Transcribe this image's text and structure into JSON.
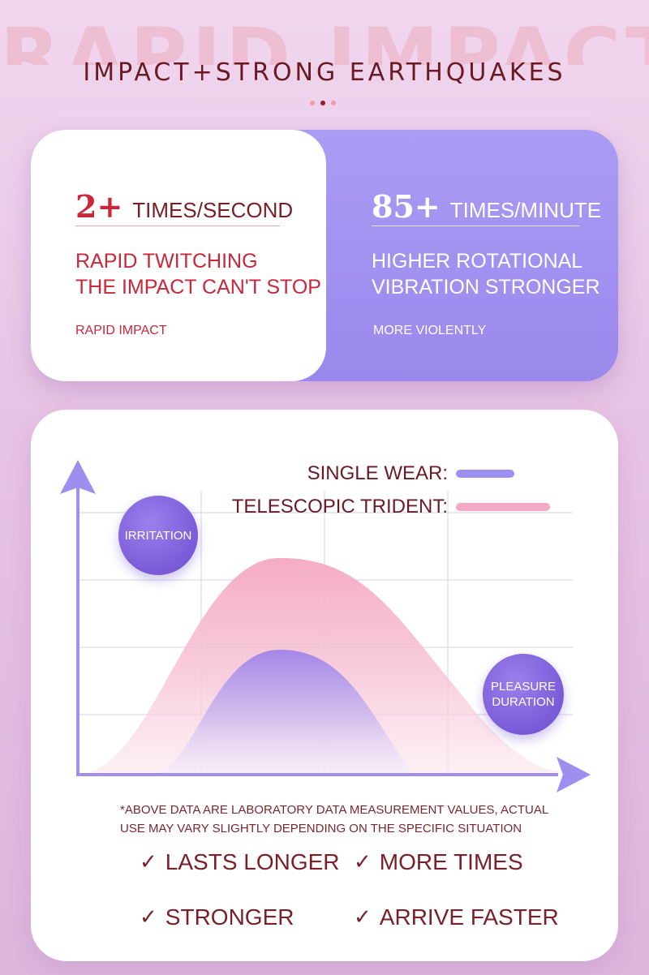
{
  "header": {
    "watermark": "RAPID IMPACT",
    "title": "IMPACT+STRONG EARTHQUAKES"
  },
  "stats": [
    {
      "number": "2+",
      "unit": "TIMES/SECOND",
      "description": [
        "RAPID TWITCHING",
        "THE IMPACT CAN'T STOP"
      ],
      "sub": "RAPID IMPACT"
    },
    {
      "number": "85+",
      "unit": "TIMES/MINUTE",
      "description": [
        "HIGHER ROTATIONAL",
        "VIBRATION STRONGER"
      ],
      "sub": "MORE VIOLENTLY"
    }
  ],
  "chart": {
    "legend": [
      {
        "label": "SINGLE WEAR:",
        "color": "#9b8ff0"
      },
      {
        "label": "TELESCOPIC TRIDENT:",
        "color": "#f4a8c4"
      }
    ],
    "y_axis_badge": "IRRITATION",
    "x_axis_badge": [
      "PLEASURE",
      "DURATION"
    ]
  },
  "note": "*ABOVE DATA ARE LABORATORY DATA MEASUREMENT VALUES, ACTUAL USE MAY VARY SLIGHTLY DEPENDING ON THE SPECIFIC SITUATION",
  "features": [
    "LASTS LONGER",
    "MORE TIMES",
    "STRONGER",
    "ARRIVE FASTER"
  ],
  "colors": {
    "maroon": "#6a1a22",
    "red_accent": "#c8283a",
    "purple": "#9b8ff0",
    "pink": "#f4a8c4"
  }
}
